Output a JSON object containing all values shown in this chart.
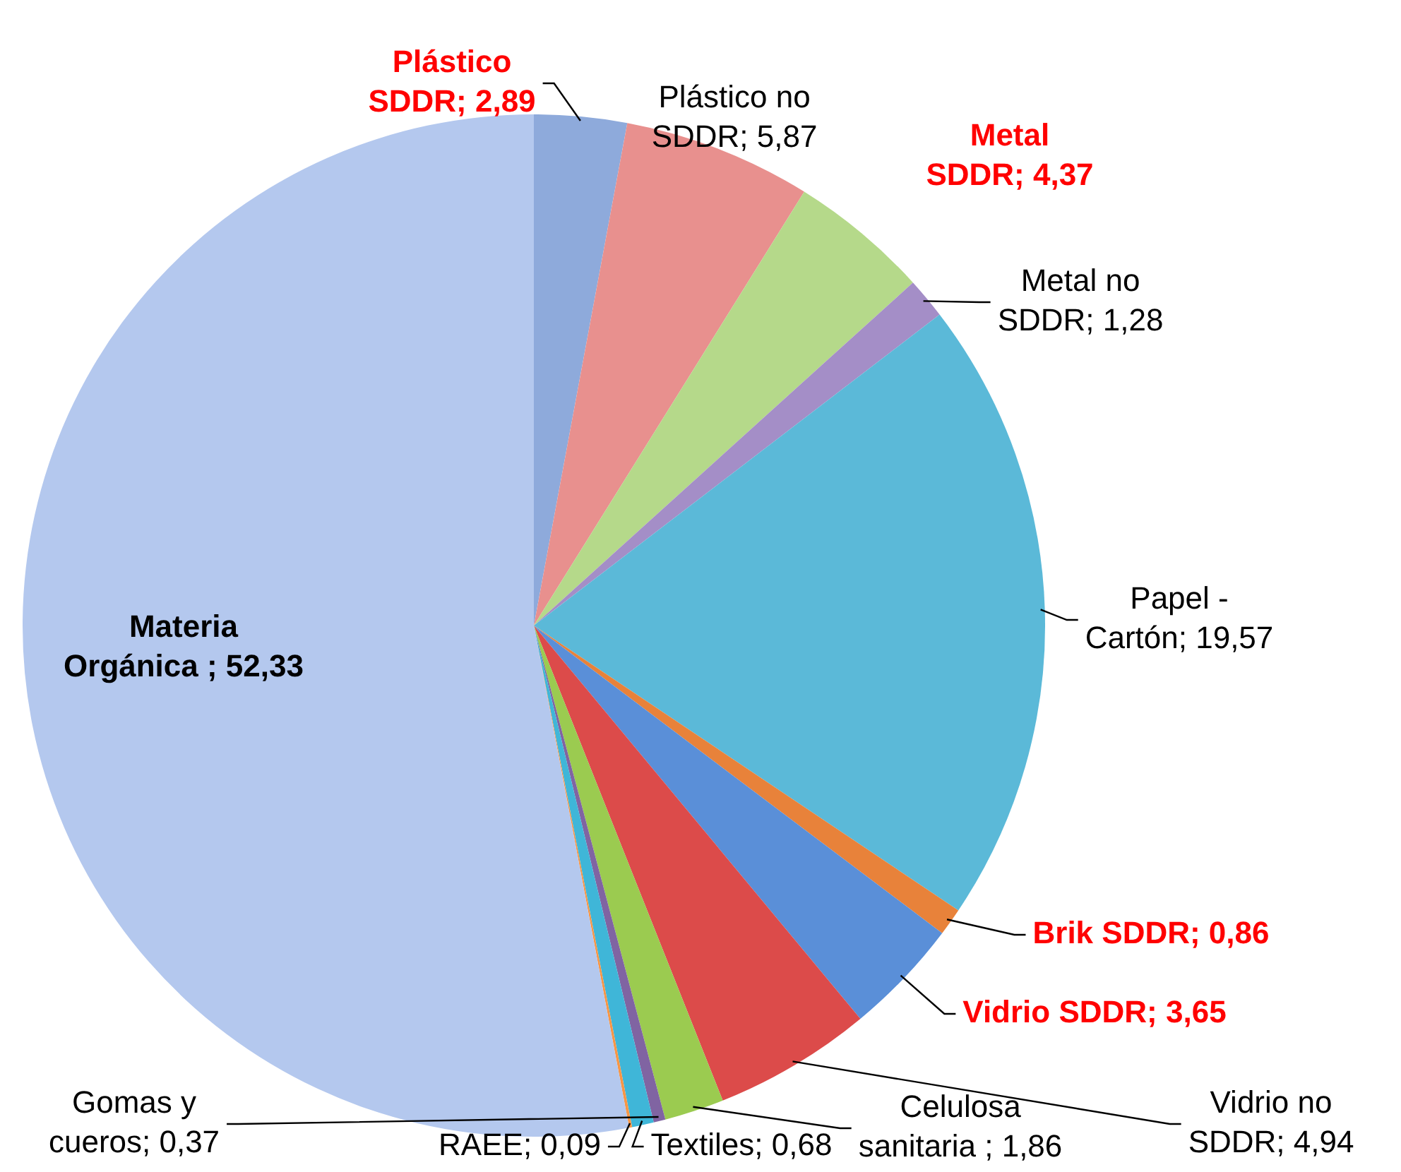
{
  "chart_data": {
    "type": "pie",
    "categories": [
      "Plástico SDDR",
      "Plástico no SDDR",
      "Metal SDDR",
      "Metal no SDDR",
      "Papel - Cartón",
      "Brik SDDR",
      "Vidrio SDDR",
      "Vidrio no SDDR",
      "Celulosa sanitaria",
      "Gomas y cueros",
      "Textiles",
      "RAEE",
      "Materia Orgánica"
    ],
    "values": [
      2.89,
      5.87,
      4.37,
      1.28,
      19.57,
      0.86,
      3.65,
      4.94,
      1.86,
      0.37,
      0.68,
      0.09,
      52.33
    ],
    "value_labels": [
      "2,89",
      "5,87",
      "4,37",
      "1,28",
      "19,57",
      "0,86",
      "3,65",
      "4,94",
      "1,86",
      "0,37",
      "0,68",
      "0,09",
      "52,33"
    ],
    "colors": [
      "#8eaadb",
      "#e8908e",
      "#b5d98a",
      "#a48ec7",
      "#5bb9d8",
      "#e8823a",
      "#5a8fd8",
      "#dc4b4a",
      "#9bcb50",
      "#8064a2",
      "#3fb6d8",
      "#f79646",
      "#b4c8ee"
    ],
    "data_labels": true,
    "legend": false
  }
}
